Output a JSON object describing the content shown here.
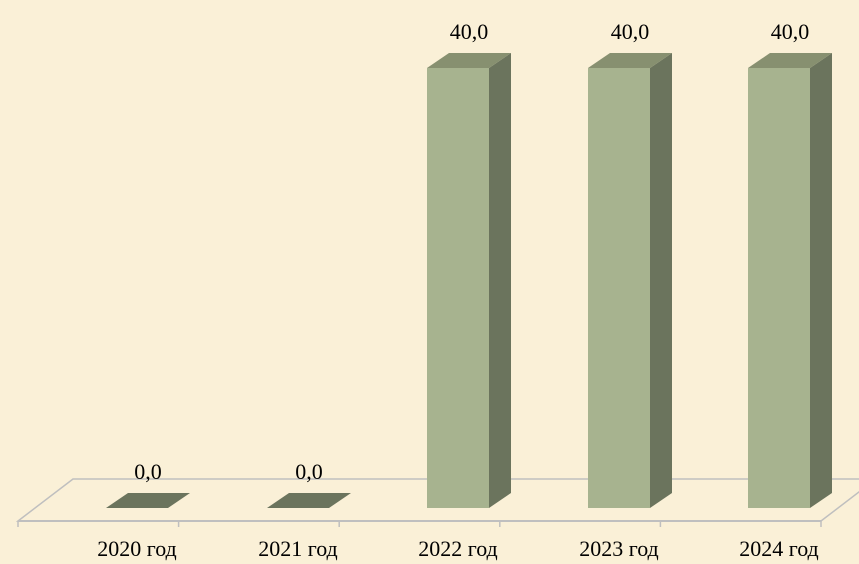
{
  "chart_data": {
    "type": "bar",
    "style": "3d-column",
    "categories": [
      "2020 год",
      "2021 год",
      "2022 год",
      "2023 год",
      "2024 год"
    ],
    "values": [
      0.0,
      0.0,
      40.0,
      40.0,
      40.0
    ],
    "data_labels": [
      "0,0",
      "0,0",
      "40,0",
      "40,0",
      "40,0"
    ],
    "title": "",
    "xlabel": "",
    "ylabel": "",
    "ylim": [
      0,
      40
    ],
    "grid": false,
    "legend": "none",
    "colors": {
      "background": "#faf0d7",
      "bar_front": "#a7b38f",
      "bar_side": "#6b745d",
      "bar_top": "#879070",
      "floor_line": "#bfbfbf",
      "text": "#000000"
    }
  }
}
